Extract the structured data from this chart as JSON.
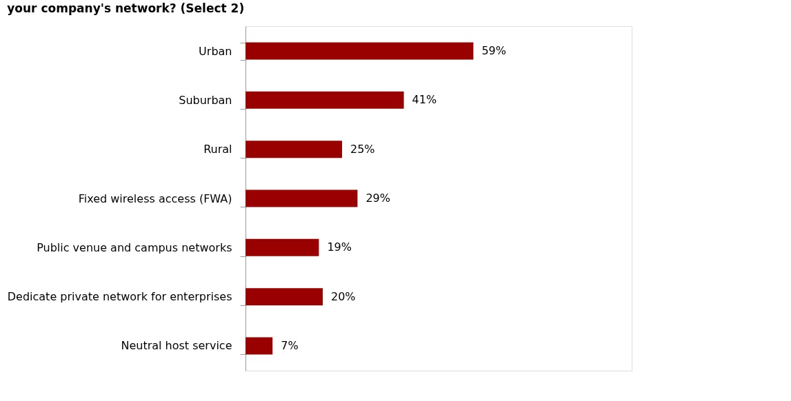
{
  "chart_data": {
    "type": "bar",
    "orientation": "horizontal",
    "title": "your company's network? (Select 2)",
    "categories": [
      "Urban",
      "Suburban",
      "Rural",
      "Fixed wireless access (FWA)",
      "Public venue and campus networks",
      "Dedicate private network for enterprises",
      "Neutral host service"
    ],
    "values": [
      59,
      41,
      25,
      29,
      19,
      20,
      7
    ],
    "value_labels": [
      "59%",
      "41%",
      "25%",
      "29%",
      "19%",
      "20%",
      "7%"
    ],
    "color": "#990000",
    "xlim": [
      0,
      100
    ],
    "tick_labels": "y"
  }
}
